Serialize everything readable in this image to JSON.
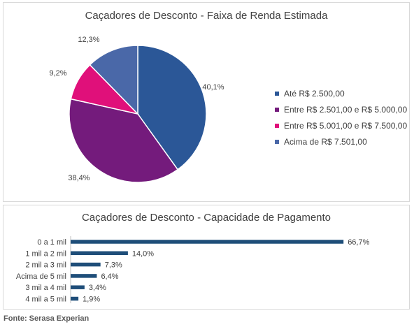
{
  "chart_data": [
    {
      "type": "pie",
      "title": "Caçadores de Desconto - Faixa de Renda Estimada",
      "categories": [
        "Até R$ 2.500,00",
        "Entre R$ 2.501,00 e R$ 5.000,00",
        "Entre R$ 5.001,00 e R$ 7.500,00",
        "Acima de R$ 7.501,00"
      ],
      "values": [
        40.1,
        38.4,
        9.2,
        12.3
      ],
      "labels": [
        "40,1%",
        "38,4%",
        "9,2%",
        "12,3%"
      ],
      "colors": [
        "#2b5797",
        "#741b7c",
        "#e0107a",
        "#4a68a8"
      ],
      "legend": "right"
    },
    {
      "type": "bar",
      "orientation": "horizontal",
      "title": "Caçadores de Desconto - Capacidade de Pagamento",
      "categories": [
        "0 a 1 mil",
        "1 mil a 2 mil",
        "2 mil a 3 mil",
        "Acima de 5 mil",
        "3 mil a 4 mil",
        "4 mil a 5 mil"
      ],
      "values": [
        66.7,
        14.0,
        7.3,
        6.4,
        3.4,
        1.9
      ],
      "labels": [
        "66,7%",
        "14,0%",
        "7,3%",
        "6,4%",
        "3,4%",
        "1,9%"
      ],
      "color": "#1f4e79"
    }
  ],
  "source": "Fonte: Serasa Experian"
}
